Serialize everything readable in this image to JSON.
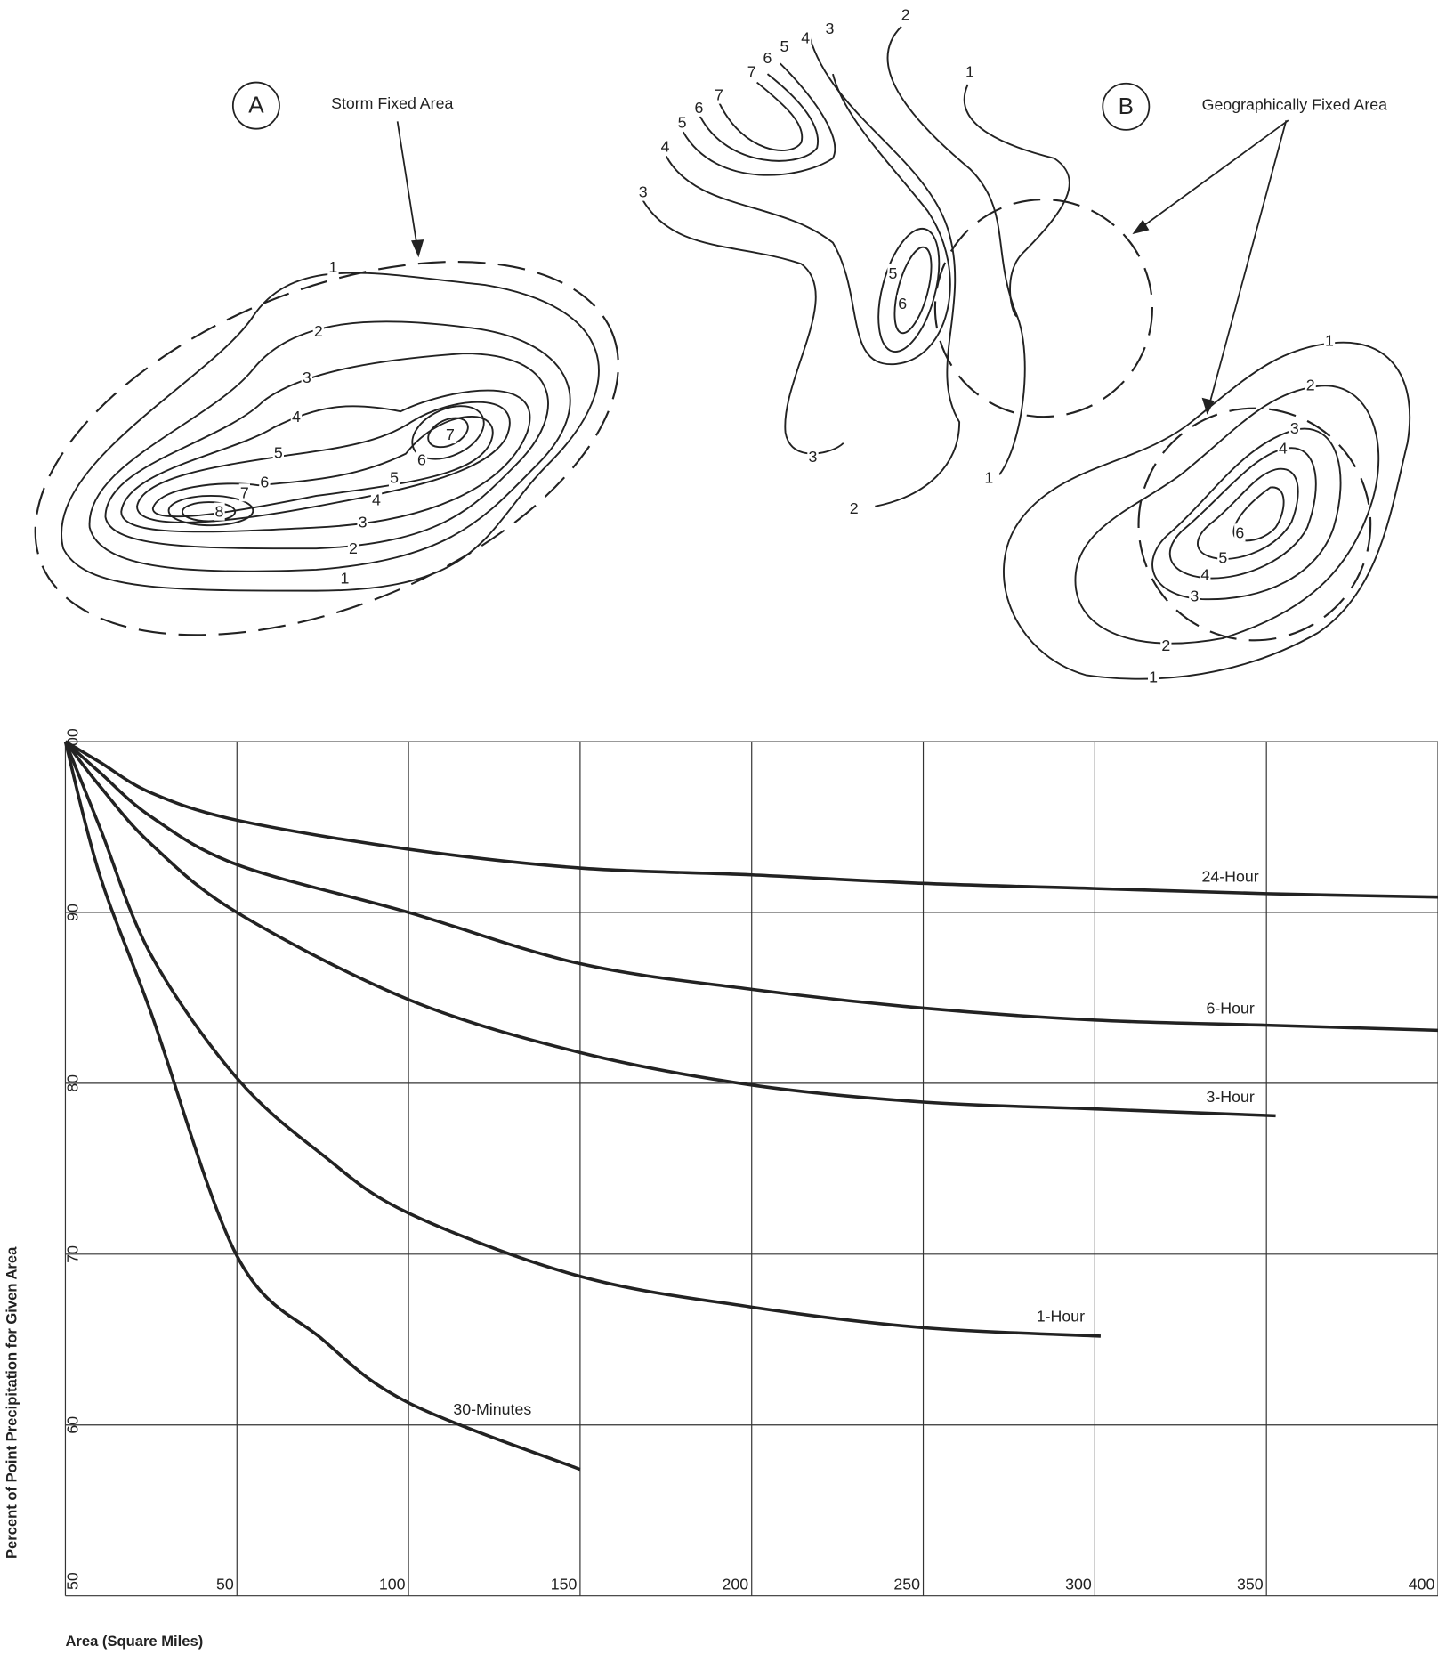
{
  "diagram_a": {
    "label": "A",
    "caption": "Storm Fixed Area",
    "contour_labels": [
      1,
      2,
      3,
      4,
      5,
      6,
      7,
      8,
      7,
      6,
      5,
      4,
      3,
      2,
      1
    ]
  },
  "diagram_b": {
    "label": "B",
    "caption": "Geographically Fixed Area",
    "contour_labels_upper": [
      2,
      3,
      4,
      5,
      6,
      7,
      1,
      7,
      6,
      5,
      4,
      3,
      5,
      6,
      3,
      2,
      1
    ],
    "contour_labels_lower": [
      1,
      2,
      3,
      4,
      6,
      5,
      4,
      3,
      2,
      1
    ]
  },
  "chart_data": {
    "type": "line",
    "y_label": "Percent of Point Precipitation for Given Area",
    "x_label": "Area (Square Miles)",
    "xlim": [
      0,
      400
    ],
    "ylim": [
      50,
      100
    ],
    "xticks": [
      50,
      100,
      150,
      200,
      250,
      300,
      350,
      400
    ],
    "yticks": [
      50,
      60,
      70,
      80,
      90,
      100
    ],
    "grid": true,
    "series": [
      {
        "name": "24-Hour",
        "color": "#222222",
        "x": [
          0,
          10,
          25,
          50,
          100,
          150,
          200,
          250,
          300,
          350,
          400
        ],
        "values": [
          100,
          98.8,
          97.0,
          95.4,
          93.7,
          92.6,
          92.2,
          91.7,
          91.4,
          91.1,
          90.9
        ]
      },
      {
        "name": "6-Hour",
        "color": "#222222",
        "x": [
          0,
          10,
          25,
          50,
          100,
          150,
          200,
          250,
          300,
          350,
          400
        ],
        "values": [
          100,
          98.2,
          95.6,
          92.8,
          90.0,
          87.0,
          85.5,
          84.4,
          83.7,
          83.4,
          83.1
        ]
      },
      {
        "name": "3-Hour",
        "color": "#222222",
        "x": [
          0,
          10,
          25,
          50,
          100,
          150,
          200,
          250,
          300,
          352.7
        ],
        "values": [
          100,
          97.4,
          94.0,
          90.0,
          84.9,
          81.8,
          79.9,
          78.9,
          78.5,
          78.1
        ]
      },
      {
        "name": "1-Hour",
        "color": "#222222",
        "x": [
          0,
          10,
          25,
          50,
          75,
          100,
          150,
          200,
          250,
          301.7
        ],
        "values": [
          100,
          95.0,
          87.5,
          80.3,
          75.8,
          72.4,
          68.7,
          66.9,
          65.7,
          65.2
        ]
      },
      {
        "name": "30-Minutes",
        "color": "#222222",
        "x": [
          0,
          10,
          25,
          50,
          75,
          100,
          150
        ],
        "values": [
          100,
          92.2,
          84.1,
          69.9,
          65.0,
          61.3,
          57.4
        ]
      }
    ]
  }
}
